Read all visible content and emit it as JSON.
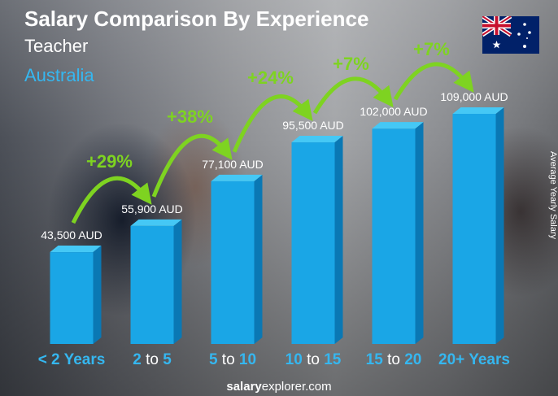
{
  "header": {
    "title": "Salary Comparison By Experience",
    "subtitle": "Teacher",
    "country": "Australia"
  },
  "footer": {
    "brand_bold": "salary",
    "brand_rest": "explorer.com"
  },
  "colors": {
    "bar_front": "#1aa6e6",
    "bar_top": "#45c8f5",
    "bar_side": "#0a78b4",
    "accent": "#35b7f0",
    "arrow": "#7ed321"
  },
  "flag_icon": "australia-flag-icon",
  "chart_data": {
    "type": "bar",
    "ylabel": "Average Yearly Salary",
    "categories": [
      {
        "label": "< 2 Years"
      },
      {
        "a": "2",
        "to": " to ",
        "b": "5"
      },
      {
        "a": "5",
        "to": " to ",
        "b": "10"
      },
      {
        "a": "10",
        "to": " to ",
        "b": "15"
      },
      {
        "a": "15",
        "to": " to ",
        "b": "20"
      },
      {
        "label": "20+ Years"
      }
    ],
    "values": [
      43500,
      55900,
      77100,
      95500,
      102000,
      109000
    ],
    "value_labels": [
      "43,500 AUD",
      "55,900 AUD",
      "77,100 AUD",
      "95,500 AUD",
      "102,000 AUD",
      "109,000 AUD"
    ],
    "increases": [
      "+29%",
      "+38%",
      "+24%",
      "+7%",
      "+7%"
    ],
    "ylim": [
      0,
      130000
    ]
  }
}
